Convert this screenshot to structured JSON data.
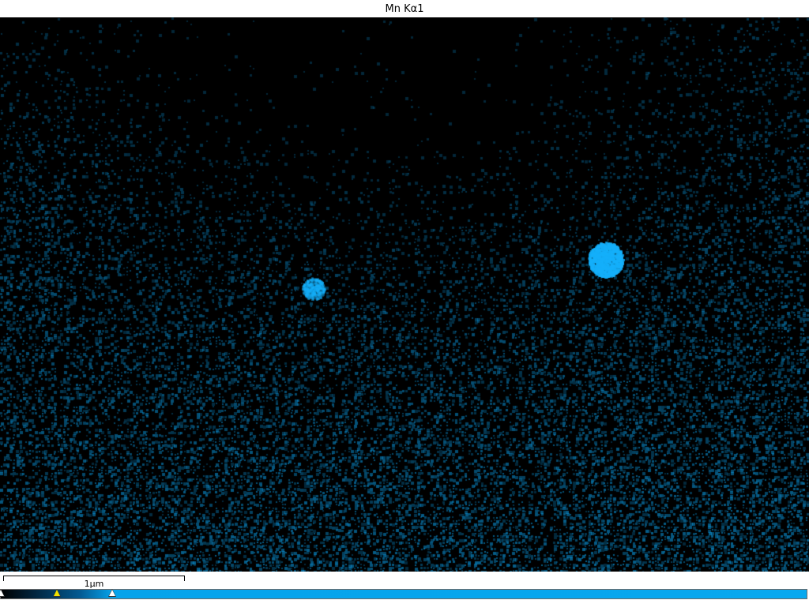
{
  "window": {
    "title": "Mn Kα1"
  },
  "map": {
    "element": "Mn",
    "line": "Kα1",
    "map_color": "#0aa8f0",
    "background_color": "#000000"
  },
  "scale_bar": {
    "label": "1µm"
  },
  "color_scale": {
    "start_color": "#000000",
    "end_color": "#08a8ef",
    "handles": [
      {
        "name": "min",
        "color": "#ffffff",
        "level": 0.0
      },
      {
        "name": "mid",
        "color": "#f2e300",
        "level": 0.07
      },
      {
        "name": "max",
        "color": "#ffffff",
        "level": 0.14
      }
    ]
  }
}
